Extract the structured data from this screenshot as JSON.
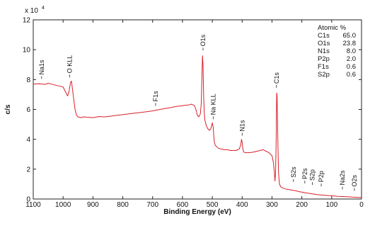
{
  "chart_data": {
    "type": "line",
    "title": "",
    "xlabel": "Binding Energy (eV)",
    "ylabel": "c/s",
    "x_reversed": true,
    "xlim": [
      1100,
      0
    ],
    "ylim": [
      0,
      120000
    ],
    "y_multiplier_label": "x 10",
    "y_multiplier_exponent": "4",
    "x_ticks": [
      1100,
      1000,
      900,
      800,
      700,
      600,
      500,
      400,
      300,
      200,
      100,
      0
    ],
    "y_ticks": [
      0,
      20000,
      40000,
      60000,
      80000,
      100000,
      120000
    ],
    "y_tick_labels": [
      "0",
      "2",
      "4",
      "6",
      "8",
      "10",
      "12"
    ],
    "grid": false,
    "series": [
      {
        "color": "#d9202a",
        "x": [
          1100,
          1080,
          1060,
          1050,
          1040,
          1030,
          1020,
          1010,
          1000,
          995,
          990,
          985,
          980,
          975,
          972,
          970,
          965,
          960,
          955,
          950,
          940,
          930,
          920,
          900,
          880,
          860,
          840,
          820,
          800,
          780,
          760,
          740,
          720,
          700,
          680,
          660,
          640,
          620,
          600,
          590,
          580,
          570,
          560,
          555,
          550,
          545,
          540,
          537,
          535,
          533,
          531,
          529,
          527,
          525,
          520,
          515,
          510,
          505,
          500,
          497,
          495,
          493,
          490,
          485,
          480,
          470,
          460,
          450,
          440,
          430,
          420,
          410,
          405,
          402,
          400,
          398,
          395,
          390,
          380,
          370,
          360,
          350,
          340,
          330,
          320,
          310,
          300,
          295,
          292,
          290,
          288,
          286,
          285,
          284,
          283,
          282,
          280,
          278,
          275,
          270,
          260,
          250,
          240,
          230,
          220,
          210,
          200,
          190,
          180,
          170,
          160,
          150,
          140,
          130,
          120,
          110,
          100,
          90,
          80,
          70,
          60,
          50,
          40,
          30,
          20,
          10,
          0
        ],
        "y": [
          77000,
          77200,
          76800,
          77500,
          77000,
          76500,
          76000,
          75500,
          75000,
          73000,
          71000,
          69000,
          72000,
          78000,
          79000,
          76000,
          68000,
          60000,
          56000,
          55000,
          54500,
          55000,
          54800,
          54500,
          55200,
          55000,
          55500,
          56000,
          56500,
          57000,
          57500,
          58000,
          58500,
          59000,
          59800,
          60500,
          61200,
          62000,
          62500,
          62800,
          63000,
          63500,
          62500,
          60000,
          56000,
          55000,
          57000,
          64000,
          80000,
          96000,
          90000,
          68000,
          58000,
          53000,
          49000,
          47000,
          46000,
          47000,
          51000,
          48000,
          42000,
          38000,
          36000,
          35000,
          34000,
          33500,
          33000,
          33000,
          32500,
          32500,
          32500,
          33500,
          36000,
          40000,
          38000,
          34000,
          31500,
          31000,
          31000,
          31200,
          31500,
          32000,
          32500,
          33000,
          32000,
          31000,
          29000,
          24000,
          18000,
          12000,
          18000,
          40000,
          60000,
          71000,
          70000,
          60000,
          35000,
          18000,
          10000,
          8000,
          7000,
          6500,
          6200,
          5800,
          5500,
          5000,
          4600,
          4200,
          3900,
          3600,
          3300,
          3000,
          2800,
          2600,
          2400,
          2300,
          2200,
          2000,
          1800,
          1700,
          1600,
          1500,
          1400,
          1300,
          1200,
          1100,
          1000
        ]
      }
    ],
    "peak_labels": [
      {
        "text": "Na1s",
        "x": 1072,
        "y": 79000
      },
      {
        "text": "O KLL",
        "x": 978,
        "y": 80000
      },
      {
        "text": "F1s",
        "x": 690,
        "y": 61000
      },
      {
        "text": "O1s",
        "x": 531,
        "y": 98000
      },
      {
        "text": "Na KLL",
        "x": 497,
        "y": 52000
      },
      {
        "text": "N1s",
        "x": 400,
        "y": 41000
      },
      {
        "text": "C1s",
        "x": 285,
        "y": 73000
      },
      {
        "text": "S2s",
        "x": 228,
        "y": 10000
      },
      {
        "text": "P2s",
        "x": 190,
        "y": 9000
      },
      {
        "text": "S2p",
        "x": 165,
        "y": 8000
      },
      {
        "text": "P2p",
        "x": 135,
        "y": 7000
      },
      {
        "text": "Na2s",
        "x": 64,
        "y": 5000
      },
      {
        "text": "O2s",
        "x": 24,
        "y": 4000
      }
    ],
    "composition_table": {
      "title": "Atomic %",
      "rows": [
        {
          "element": "C1s",
          "value": "65.0"
        },
        {
          "element": "O1s",
          "value": "23.8"
        },
        {
          "element": "N1s",
          "value": "8.0"
        },
        {
          "element": "P2p",
          "value": "2.0"
        },
        {
          "element": "F1s",
          "value": "0.6"
        },
        {
          "element": "S2p",
          "value": "0.6"
        }
      ]
    }
  }
}
